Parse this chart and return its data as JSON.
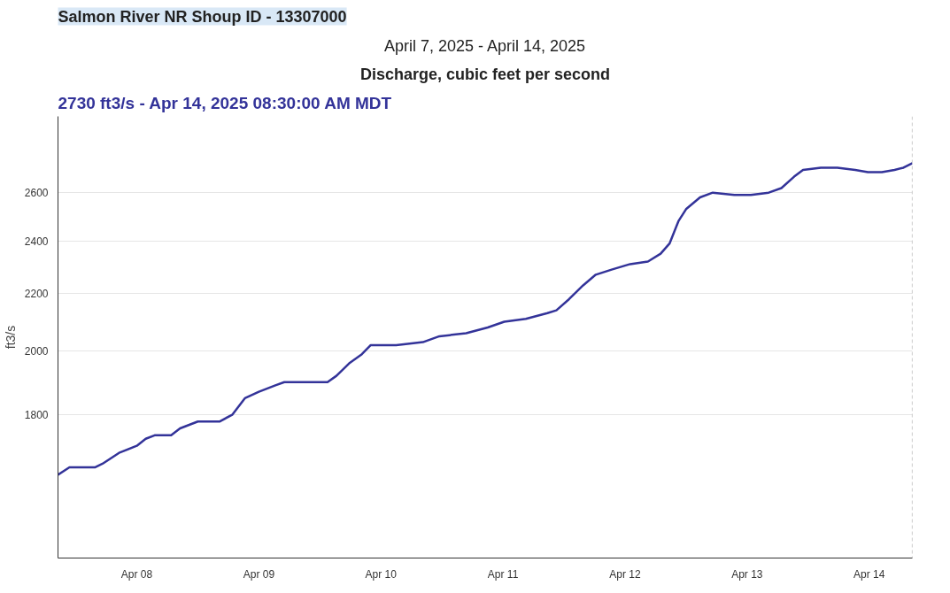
{
  "chart_data": {
    "type": "line",
    "title": "Salmon River NR Shoup ID - 13307000",
    "subtitle": "April 7, 2025 - April 14, 2025",
    "ylabel": "ft3/s",
    "annotations": [
      "Discharge, cubic feet per second",
      "2730 ft3/s - Apr 14, 2025 08:30:00 AM MDT"
    ],
    "series": [
      {
        "color": "#333399",
        "x": [
          "2025-04-07T08:30",
          "2025-04-07T10:45",
          "2025-04-07T15:45",
          "2025-04-07T17:15",
          "2025-04-07T20:30",
          "2025-04-08T00:00",
          "2025-04-08T01:45",
          "2025-04-08T03:30",
          "2025-04-08T06:45",
          "2025-04-08T08:30",
          "2025-04-08T12:00",
          "2025-04-08T16:15",
          "2025-04-08T18:45",
          "2025-04-08T21:15",
          "2025-04-09T00:00",
          "2025-04-09T03:15",
          "2025-04-09T05:00",
          "2025-04-09T08:15",
          "2025-04-09T11:00",
          "2025-04-09T13:30",
          "2025-04-09T15:15",
          "2025-04-09T17:45",
          "2025-04-09T20:15",
          "2025-04-09T22:00",
          "2025-04-10T00:30",
          "2025-04-10T03:00",
          "2025-04-10T08:15",
          "2025-04-10T11:30",
          "2025-04-10T16:45",
          "2025-04-10T21:00",
          "2025-04-11T00:15",
          "2025-04-11T04:30",
          "2025-04-11T08:45",
          "2025-04-11T10:30",
          "2025-04-11T13:00",
          "2025-04-11T15:45",
          "2025-04-11T18:15",
          "2025-04-11T21:30",
          "2025-04-12T01:00",
          "2025-04-12T04:30",
          "2025-04-12T07:00",
          "2025-04-12T08:45",
          "2025-04-12T10:30",
          "2025-04-12T12:00",
          "2025-04-12T14:45",
          "2025-04-12T17:15",
          "2025-04-12T21:30",
          "2025-04-13T00:45",
          "2025-04-13T04:15",
          "2025-04-13T06:45",
          "2025-04-13T09:15",
          "2025-04-13T11:00",
          "2025-04-13T14:30",
          "2025-04-13T17:45",
          "2025-04-13T21:15",
          "2025-04-13T23:45",
          "2025-04-14T02:30",
          "2025-04-14T05:00",
          "2025-04-14T06:45",
          "2025-04-14T08:30"
        ],
        "values": [
          1630,
          1650,
          1650,
          1660,
          1690,
          1710,
          1730,
          1740,
          1740,
          1760,
          1780,
          1780,
          1800,
          1850,
          1870,
          1890,
          1900,
          1900,
          1900,
          1900,
          1920,
          1960,
          1990,
          2020,
          2020,
          2020,
          2030,
          2050,
          2060,
          2080,
          2100,
          2110,
          2130,
          2140,
          2180,
          2230,
          2270,
          2290,
          2310,
          2320,
          2350,
          2390,
          2480,
          2530,
          2580,
          2600,
          2590,
          2590,
          2600,
          2620,
          2670,
          2700,
          2710,
          2710,
          2700,
          2690,
          2690,
          2700,
          2710,
          2730
        ]
      }
    ],
    "log": "y",
    "xlim": [
      "2025-04-07T08:30",
      "2025-04-14T08:30"
    ],
    "xticks": [
      {
        "value": "2025-04-08",
        "label": "Apr 08"
      },
      {
        "value": "2025-04-09",
        "label": "Apr 09"
      },
      {
        "value": "2025-04-10",
        "label": "Apr 10"
      },
      {
        "value": "2025-04-11",
        "label": "Apr 11"
      },
      {
        "value": "2025-04-12",
        "label": "Apr 12"
      },
      {
        "value": "2025-04-13",
        "label": "Apr 13"
      },
      {
        "value": "2025-04-14",
        "label": "Apr 14"
      }
    ],
    "ylim": [
      1420,
      2950
    ],
    "yticks": [
      1800,
      2000,
      2200,
      2400,
      2600
    ],
    "grid": "y",
    "ref_lines": [
      {
        "axis": "x",
        "value": "2025-04-14T08:30",
        "color": "#aaaaaa",
        "line_style": "dashed"
      }
    ]
  }
}
